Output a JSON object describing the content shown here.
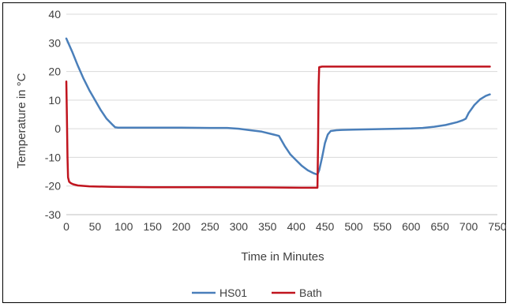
{
  "chart_data": {
    "type": "line",
    "title": "",
    "xlabel": "Time in Minutes",
    "ylabel": "Temperature in °C",
    "xlim": [
      0,
      750
    ],
    "ylim": [
      -30,
      40
    ],
    "xticks": [
      0,
      50,
      100,
      150,
      200,
      250,
      300,
      350,
      400,
      450,
      500,
      550,
      600,
      650,
      700,
      750
    ],
    "yticks": [
      -30,
      -20,
      -10,
      0,
      10,
      20,
      30,
      40
    ],
    "grid": "horizontal",
    "legend_position": "bottom",
    "series": [
      {
        "name": "HS01",
        "color": "#4a7fba",
        "x": [
          0,
          10,
          20,
          30,
          40,
          50,
          60,
          70,
          80,
          85,
          90,
          100,
          150,
          200,
          250,
          280,
          300,
          320,
          340,
          360,
          370,
          380,
          390,
          400,
          410,
          420,
          430,
          437,
          440,
          445,
          450,
          455,
          460,
          470,
          480,
          500,
          550,
          600,
          620,
          640,
          660,
          680,
          690,
          695,
          700,
          710,
          720,
          730,
          737
        ],
        "y": [
          31.5,
          27,
          22,
          17.5,
          13.5,
          10,
          6.5,
          3.5,
          1.5,
          0.5,
          0.4,
          0.4,
          0.4,
          0.4,
          0.3,
          0.3,
          0,
          -0.5,
          -1,
          -2,
          -2.5,
          -6,
          -9,
          -11,
          -13,
          -14.5,
          -15.5,
          -16,
          -14.5,
          -10,
          -5,
          -2,
          -0.8,
          -0.5,
          -0.4,
          -0.3,
          -0.1,
          0.1,
          0.3,
          0.7,
          1.3,
          2.3,
          3,
          3.5,
          5.5,
          8.3,
          10.3,
          11.5,
          12
        ]
      },
      {
        "name": "Bath",
        "color": "#c0141e",
        "x": [
          0,
          1,
          2,
          3,
          5,
          8,
          12,
          20,
          40,
          80,
          150,
          250,
          350,
          420,
          437,
          438,
          439,
          440,
          445,
          500,
          600,
          700,
          737
        ],
        "y": [
          16.5,
          5,
          -10,
          -17,
          -18.5,
          -19,
          -19.4,
          -19.8,
          -20.1,
          -20.3,
          -20.4,
          -20.4,
          -20.5,
          -20.6,
          -20.6,
          -5,
          15,
          21.5,
          21.7,
          21.7,
          21.7,
          21.7,
          21.7
        ]
      }
    ]
  }
}
